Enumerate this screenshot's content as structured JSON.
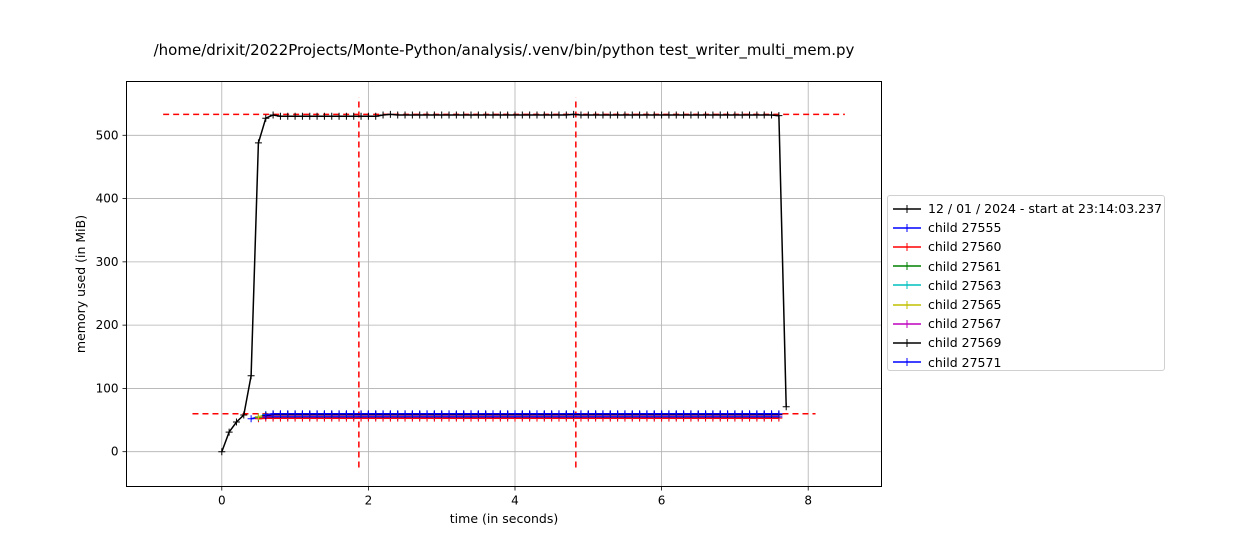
{
  "chart_data": {
    "type": "line",
    "title": "/home/drixit/2022Projects/Monte-Python/analysis/.venv/bin/python test_writer_multi_mem.py",
    "xlabel": "time (in seconds)",
    "ylabel": "memory used (in MiB)",
    "xlim": [
      -1.3,
      9.0
    ],
    "ylim": [
      -55,
      585
    ],
    "xticks": [
      0,
      2,
      4,
      6,
      8
    ],
    "yticks": [
      0,
      100,
      200,
      300,
      400,
      500
    ],
    "grid": true,
    "legend_position": "right-outside",
    "series": [
      {
        "name": "12 / 01 / 2024 - start at 23:14:03.237",
        "color": "#000000",
        "x": [
          0.0,
          0.1,
          0.2,
          0.3,
          0.4,
          0.5,
          0.6,
          0.7,
          0.8,
          0.9,
          1.0,
          1.1,
          1.2,
          1.3,
          1.4,
          1.5,
          1.6,
          1.7,
          1.8,
          1.9,
          2.0,
          2.1,
          2.2,
          2.3,
          2.4,
          2.5,
          2.6,
          2.7,
          2.8,
          2.9,
          3.0,
          3.1,
          3.2,
          3.3,
          3.4,
          3.5,
          3.6,
          3.7,
          3.8,
          3.9,
          4.0,
          4.1,
          4.2,
          4.3,
          4.4,
          4.5,
          4.6,
          4.7,
          4.8,
          4.9,
          5.0,
          5.1,
          5.2,
          5.3,
          5.4,
          5.5,
          5.6,
          5.7,
          5.8,
          5.9,
          6.0,
          6.1,
          6.2,
          6.3,
          6.4,
          6.5,
          6.6,
          6.7,
          6.8,
          6.9,
          7.0,
          7.1,
          7.2,
          7.3,
          7.4,
          7.5,
          7.6,
          7.7
        ],
        "y": [
          0,
          31,
          47,
          58,
          120,
          488,
          527,
          532,
          530,
          530,
          530,
          530,
          530,
          530,
          530,
          530,
          530,
          530,
          530,
          530,
          530,
          530,
          532,
          533,
          532,
          532,
          532,
          532,
          532,
          532,
          532,
          532,
          532,
          532,
          532,
          532,
          532,
          532,
          532,
          532,
          532,
          532,
          532,
          532,
          532,
          532,
          532,
          532,
          533,
          532,
          532,
          532,
          532,
          532,
          532,
          532,
          532,
          532,
          532,
          532,
          532,
          532,
          532,
          532,
          532,
          532,
          532,
          532,
          532,
          532,
          532,
          532,
          532,
          532,
          532,
          532,
          531,
          71
        ]
      },
      {
        "name": "child 27555",
        "color": "#0000ff",
        "x_start": 0.4,
        "x_end": 7.6,
        "step": 0.1,
        "y_start": 52,
        "y": 55
      },
      {
        "name": "child 27560",
        "color": "#ff0000",
        "x_start": 0.5,
        "x_end": 7.6,
        "step": 0.1,
        "y_start": 52,
        "y": 53
      },
      {
        "name": "child 27561",
        "color": "#008000",
        "x_start": 0.5,
        "x_end": 7.6,
        "step": 0.1,
        "y_start": 54,
        "y": 58
      },
      {
        "name": "child 27563",
        "color": "#00bfbf",
        "x_start": 0.5,
        "x_end": 7.6,
        "step": 0.1,
        "y_start": 55,
        "y": 59
      },
      {
        "name": "child 27565",
        "color": "#bfbf00",
        "x_start": 0.5,
        "x_end": 7.6,
        "step": 0.1,
        "y_start": 55,
        "y": 58
      },
      {
        "name": "child 27567",
        "color": "#bf00bf",
        "x_start": 0.6,
        "x_end": 7.6,
        "step": 0.1,
        "y_start": 56,
        "y": 58
      },
      {
        "name": "child 27569",
        "color": "#000000",
        "x_start": 0.6,
        "x_end": 7.6,
        "step": 0.1,
        "y_start": 57,
        "y": 59
      },
      {
        "name": "child 27571",
        "color": "#0000ff",
        "x_start": 0.6,
        "x_end": 7.6,
        "step": 0.1,
        "y_start": 58,
        "y": 60
      }
    ],
    "reference_lines": {
      "color": "#ff0000",
      "horizontal": [
        {
          "y": 533,
          "x_from": -0.8,
          "x_to": 8.5
        },
        {
          "y": 60,
          "x_from": -0.4,
          "x_to": 8.1
        }
      ],
      "vertical": [
        {
          "x": 1.87,
          "y_from": -25,
          "y_to": 560
        },
        {
          "x": 4.83,
          "y_from": -25,
          "y_to": 560
        }
      ]
    }
  }
}
